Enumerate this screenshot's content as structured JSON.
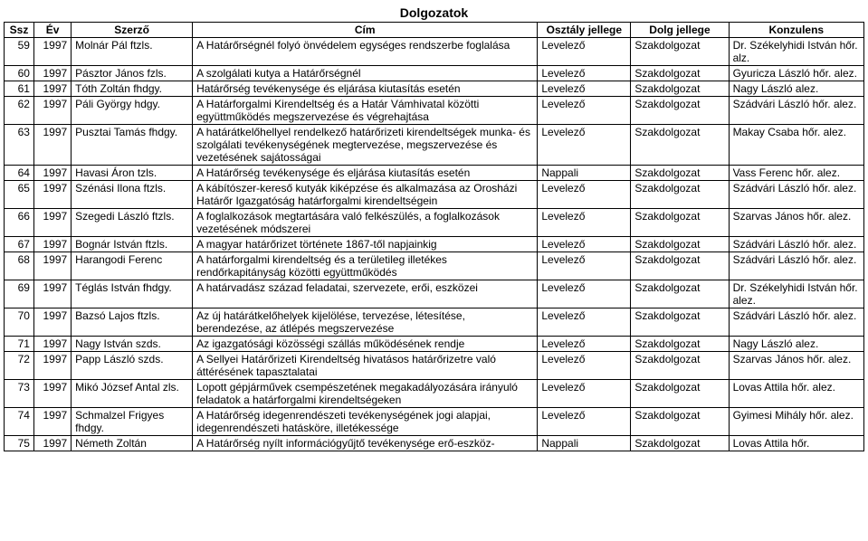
{
  "title": "Dolgozatok",
  "columns": [
    "Ssz",
    "Év",
    "Szerző",
    "Cím",
    "Osztály jellege",
    "Dolg jellege",
    "Konzulens"
  ],
  "rows": [
    {
      "ssz": "59",
      "ev": "1997",
      "szerzo": "Molnár Pál ftzls.",
      "cim": "A Határőrségnél folyó önvédelem egységes rendszerbe foglalása",
      "oj": "Levelező",
      "dj": "Szakdolgozat",
      "kon": "Dr. Székelyhidi István hőr. alz."
    },
    {
      "ssz": "60",
      "ev": "1997",
      "szerzo": "Pásztor János fzls.",
      "cim": "A szolgálati kutya a Határőrségnél",
      "oj": "Levelező",
      "dj": "Szakdolgozat",
      "kon": "Gyuricza László hőr. alez."
    },
    {
      "ssz": "61",
      "ev": "1997",
      "szerzo": "Tóth Zoltán fhdgy.",
      "cim": "Határőrség tevékenysége és eljárása kiutasítás esetén",
      "oj": "Levelező",
      "dj": "Szakdolgozat",
      "kon": "Nagy László alez."
    },
    {
      "ssz": "62",
      "ev": "1997",
      "szerzo": "Páli György hdgy.",
      "cim": "A Határforgalmi Kirendeltség és a Határ Vámhivatal közötti együttműködés megszervezése és végrehajtása",
      "oj": "Levelező",
      "dj": "Szakdolgozat",
      "kon": "Szádvári László hőr. alez."
    },
    {
      "ssz": "63",
      "ev": "1997",
      "szerzo": "Pusztai Tamás fhdgy.",
      "cim": "A határátkelőhellyel rendelkező határőrizeti kirendeltségek munka- és szolgálati tevékenységének megtervezése, megszervezése és vezetésének sajátosságai",
      "oj": "Levelező",
      "dj": "Szakdolgozat",
      "kon": "Makay Csaba hőr. alez."
    },
    {
      "ssz": "64",
      "ev": "1997",
      "szerzo": "Havasi Áron tzls.",
      "cim": "A Határőrség tevékenysége és eljárása kiutasítás esetén",
      "oj": "Nappali",
      "dj": "Szakdolgozat",
      "kon": "Vass Ferenc hőr. alez."
    },
    {
      "ssz": "65",
      "ev": "1997",
      "szerzo": "Szénási Ilona ftzls.",
      "cim": "A kábítószer-kereső kutyák kiképzése és alkalmazása az Orosházi Határőr Igazgatóság határforgalmi kirendeltségein",
      "oj": "Levelező",
      "dj": "Szakdolgozat",
      "kon": "Szádvári László hőr. alez."
    },
    {
      "ssz": "66",
      "ev": "1997",
      "szerzo": "Szegedi László ftzls.",
      "cim": "A foglalkozások megtartására való felkészülés, a foglalkozások vezetésének módszerei",
      "oj": "Levelező",
      "dj": "Szakdolgozat",
      "kon": "Szarvas János hőr. alez."
    },
    {
      "ssz": "67",
      "ev": "1997",
      "szerzo": "Bognár István ftzls.",
      "cim": "A magyar határőrizet története 1867-től napjainkig",
      "oj": "Levelező",
      "dj": "Szakdolgozat",
      "kon": "Szádvári László hőr. alez."
    },
    {
      "ssz": "68",
      "ev": "1997",
      "szerzo": "Harangodi Ferenc",
      "cim": "A határforgalmi kirendeltség és a területileg illetékes rendőrkapitányság közötti együttműködés",
      "oj": "Levelező",
      "dj": "Szakdolgozat",
      "kon": "Szádvári László hőr. alez."
    },
    {
      "ssz": "69",
      "ev": "1997",
      "szerzo": "Téglás István fhdgy.",
      "cim": "A határvadász század feladatai, szervezete, erői, eszközei",
      "oj": "Levelező",
      "dj": "Szakdolgozat",
      "kon": "Dr. Székelyhidi István hőr. alez."
    },
    {
      "ssz": "70",
      "ev": "1997",
      "szerzo": "Bazsó Lajos ftzls.",
      "cim": "Az új határátkelőhelyek kijelölése, tervezése, létesítése, berendezése, az átlépés megszervezése",
      "oj": "Levelező",
      "dj": "Szakdolgozat",
      "kon": "Szádvári László hőr. alez."
    },
    {
      "ssz": "71",
      "ev": "1997",
      "szerzo": "Nagy István szds.",
      "cim": "Az igazgatósági közösségi szállás működésének rendje",
      "oj": "Levelező",
      "dj": "Szakdolgozat",
      "kon": "Nagy László alez."
    },
    {
      "ssz": "72",
      "ev": "1997",
      "szerzo": "Papp László szds.",
      "cim": "A Sellyei Határőrizeti Kirendeltség hivatásos határőrizetre való áttérésének tapasztalatai",
      "oj": "Levelező",
      "dj": "Szakdolgozat",
      "kon": "Szarvas János hőr. alez."
    },
    {
      "ssz": "73",
      "ev": "1997",
      "szerzo": "Mikó József Antal zls.",
      "cim": "Lopott gépjárművek csempészetének megakadályozására irányuló feladatok a határforgalmi kirendeltségeken",
      "oj": "Levelező",
      "dj": "Szakdolgozat",
      "kon": "Lovas Attila hőr. alez."
    },
    {
      "ssz": "74",
      "ev": "1997",
      "szerzo": "Schmalzel Frigyes fhdgy.",
      "cim": "A Határőrség idegenrendészeti tevékenységének jogi alapjai, idegenrendészeti hatásköre, illetékessége",
      "oj": "Levelező",
      "dj": "Szakdolgozat",
      "kon": "Gyimesi Mihály hőr. alez."
    },
    {
      "ssz": "75",
      "ev": "1997",
      "szerzo": "Németh Zoltán",
      "cim": "A Határőrség nyílt információgyűjtő tevékenysége erő-eszköz-",
      "oj": "Nappali",
      "dj": "Szakdolgozat",
      "kon": "Lovas Attila hőr."
    }
  ]
}
